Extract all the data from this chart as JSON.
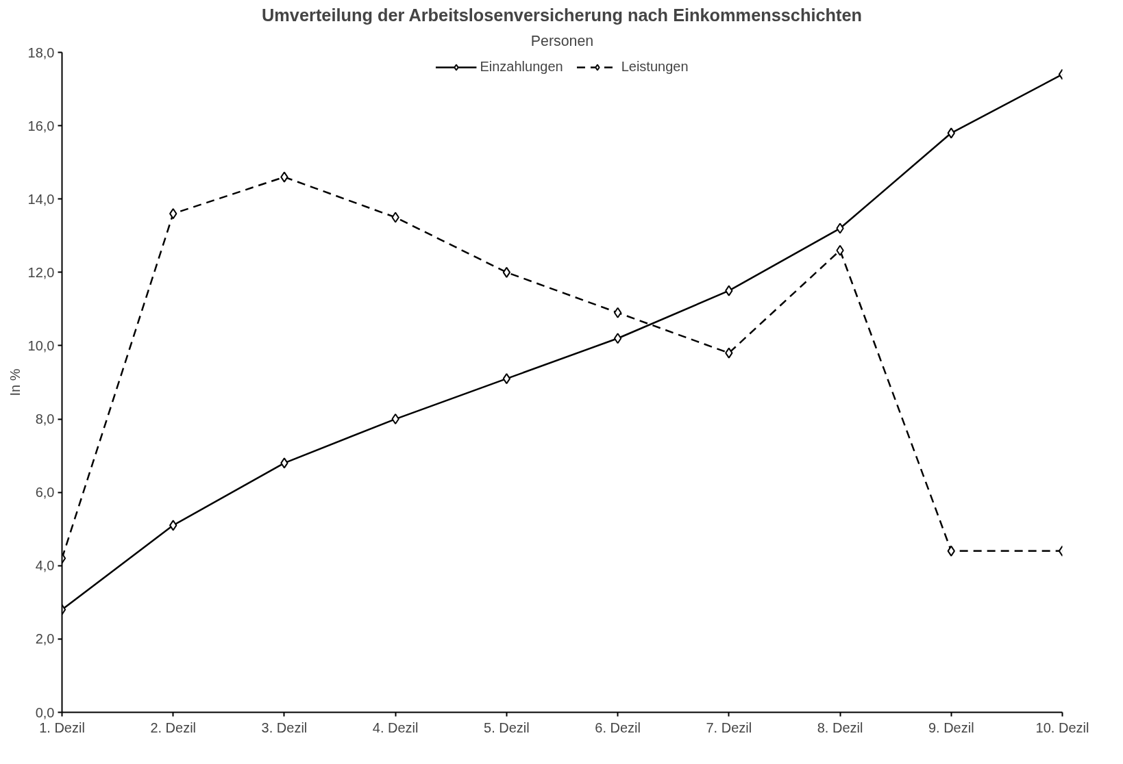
{
  "chart_data": {
    "type": "line",
    "title": "Umverteilung der Arbeitslosenversicherung nach Einkommensschichten",
    "subtitle": "Personen",
    "ylabel": "In %",
    "categories": [
      "1. Dezil",
      "2. Dezil",
      "3. Dezil",
      "4. Dezil",
      "5. Dezil",
      "6. Dezil",
      "7. Dezil",
      "8. Dezil",
      "9. Dezil",
      "10. Dezil"
    ],
    "series": [
      {
        "name": "Einzahlungen",
        "color": "#000000",
        "line_style": "solid",
        "values": [
          2.8,
          5.1,
          6.8,
          8.0,
          9.1,
          10.2,
          11.5,
          13.2,
          15.8,
          17.4
        ]
      },
      {
        "name": "Leistungen",
        "color": "#000000",
        "line_style": "dashed",
        "values": [
          4.2,
          13.6,
          14.6,
          13.5,
          12.0,
          10.9,
          9.8,
          12.6,
          4.4,
          4.4
        ]
      }
    ],
    "ylim": [
      0,
      18
    ],
    "yticks": [
      {
        "value": 0,
        "label": "0,0"
      },
      {
        "value": 2,
        "label": "2,0"
      },
      {
        "value": 4,
        "label": "4,0"
      },
      {
        "value": 6,
        "label": "6,0"
      },
      {
        "value": 8,
        "label": "8,0"
      },
      {
        "value": 10,
        "label": "10,0"
      },
      {
        "value": 12,
        "label": "12,0"
      },
      {
        "value": 14,
        "label": "14,0"
      },
      {
        "value": 16,
        "label": "16,0"
      },
      {
        "value": 18,
        "label": "18,0"
      }
    ],
    "marker": "diamond",
    "grid": false,
    "legend": "top"
  }
}
